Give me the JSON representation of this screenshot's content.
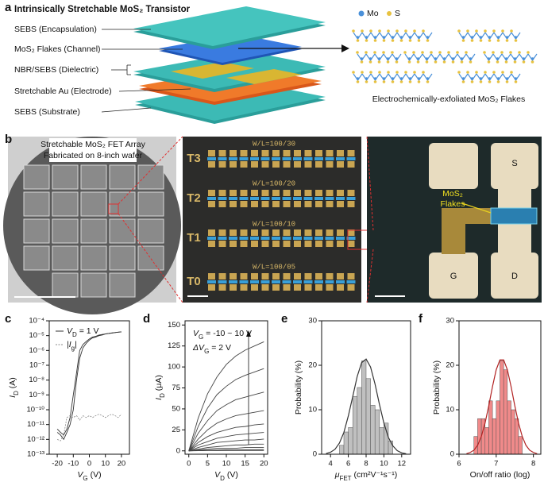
{
  "panel_a": {
    "label": "a",
    "title": "Intrinsically Stretchable MoS₂ Transistor",
    "layers": [
      "SEBS (Encapsulation)",
      "MoS₂ Flakes (Channel)",
      "NBR/SEBS (Dielectric)",
      "Stretchable Au (Electrode)",
      "SEBS (Substrate)"
    ],
    "legend": [
      "Mo",
      "S"
    ],
    "caption": "Electrochemically-exfoliated MoS₂ Flakes"
  },
  "panel_b": {
    "label": "b",
    "wafer_caption": [
      "Stretchable MoS₂ FET Array",
      "Fabricated on 8-inch wafer"
    ],
    "rows": [
      {
        "name": "T3",
        "ratio": "W/L=100/30"
      },
      {
        "name": "T2",
        "ratio": "W/L=100/20"
      },
      {
        "name": "T1",
        "ratio": "W/L=100/10"
      },
      {
        "name": "T0",
        "ratio": "W/L=100/05"
      }
    ],
    "pads": [
      "S",
      "G",
      "D"
    ],
    "flakes_label": [
      "MoS₂",
      "Flakes"
    ]
  },
  "chart_data": [
    {
      "type": "line",
      "label": "c",
      "ylog": true,
      "xlim": [
        -25,
        25
      ],
      "xticks": [
        -20,
        -10,
        0,
        10,
        20
      ],
      "ylim": [
        1e-13,
        0.0001
      ],
      "yticks": [
        {
          "value": 1e-13,
          "label": "10⁻¹³"
        },
        {
          "value": 1e-12,
          "label": "10⁻¹²"
        },
        {
          "value": 1e-11,
          "label": "10⁻¹¹"
        },
        {
          "value": 1e-10,
          "label": "10⁻¹⁰"
        },
        {
          "value": 1e-09,
          "label": "10⁻⁹"
        },
        {
          "value": 1e-08,
          "label": "10⁻⁸"
        },
        {
          "value": 1e-07,
          "label": "10⁻⁷"
        },
        {
          "value": 1e-06,
          "label": "10⁻⁶"
        },
        {
          "value": 1e-05,
          "label": "10⁻⁵"
        },
        {
          "value": 0.0001,
          "label": "10⁻⁴"
        }
      ],
      "xlabel": [
        "V",
        "G",
        " (V)"
      ],
      "ylabel": [
        "I",
        "D",
        " (A)"
      ],
      "x": [
        -20,
        -18,
        -16,
        -14,
        -12,
        -10,
        -8,
        -6,
        -4,
        -2,
        0,
        2,
        4,
        6,
        8,
        10,
        12,
        14,
        16,
        18,
        20
      ],
      "series": [
        {
          "name": [
            "V",
            "D",
            " = 1 V"
          ],
          "color": "#333333",
          "values": [
            3e-12,
            2e-12,
            1e-12,
            3e-12,
            1e-11,
            1e-10,
            1e-08,
            3e-07,
            1.5e-06,
            3e-06,
            5e-06,
            7e-06,
            8e-06,
            1e-05,
            1.1e-05,
            1.3e-05,
            1.4e-05,
            1.5e-05,
            1.6e-05,
            1.7e-05,
            1.8e-05
          ]
        },
        {
          "color": "#333333",
          "values": [
            5e-12,
            3e-12,
            2e-12,
            5e-12,
            3e-11,
            1e-09,
            3e-08,
            1e-06,
            2.5e-06,
            4e-06,
            6e-06,
            8e-06,
            9e-06,
            1.1e-05,
            1.2e-05,
            1.3e-05,
            1.4e-05,
            1.5e-05,
            1.6e-05,
            1.7e-05,
            1.8e-05
          ]
        },
        {
          "name": [
            "|I",
            "g",
            "|"
          ],
          "color": "#888888",
          "dash": true,
          "values": [
            1e-12,
            8e-13,
            2e-12,
            3e-11,
            4e-11,
            3e-11,
            4e-11,
            2e-11,
            4e-11,
            3e-11,
            4e-11,
            3e-11,
            4e-11,
            5e-11,
            4e-11,
            3e-11,
            4e-11,
            5e-11,
            4e-11,
            3e-11,
            5e-11
          ]
        }
      ]
    },
    {
      "type": "line",
      "label": "d",
      "xlim": [
        -1,
        21
      ],
      "xticks": [
        0,
        5,
        10,
        15,
        20
      ],
      "ylim": [
        -4,
        155
      ],
      "yticks": [
        0,
        25,
        50,
        75,
        100,
        125,
        150
      ],
      "xlabel": [
        "V",
        "D",
        " (V)"
      ],
      "ylabel": [
        "I",
        "D",
        " (μA)"
      ],
      "annotations": [
        [
          "V",
          "G",
          " = -10 ~ 10 V"
        ],
        [
          "ΔV",
          "G",
          " = 2 V"
        ]
      ],
      "x": [
        0,
        2.5,
        5,
        7.5,
        10,
        12.5,
        15,
        17.5,
        20
      ],
      "series": [
        {
          "color": "#444444",
          "values": [
            0,
            39,
            68,
            88,
            103,
            113,
            120,
            125,
            130
          ]
        },
        {
          "color": "#444444",
          "values": [
            0,
            29,
            51,
            67,
            77,
            85,
            90,
            94,
            98
          ]
        },
        {
          "color": "#444444",
          "values": [
            0,
            21,
            36,
            48,
            55,
            61,
            64,
            67,
            70
          ]
        },
        {
          "color": "#444444",
          "values": [
            0,
            14,
            25,
            33,
            38,
            42,
            44,
            46,
            48
          ]
        },
        {
          "color": "#444444",
          "values": [
            0,
            10,
            17,
            22,
            25,
            28,
            29,
            31,
            32
          ]
        },
        {
          "color": "#444444",
          "values": [
            0,
            7,
            11,
            15,
            17,
            19,
            20,
            21,
            22
          ]
        },
        {
          "color": "#444444",
          "values": [
            0,
            4,
            7,
            10,
            11,
            12,
            13,
            13,
            14
          ]
        },
        {
          "color": "#444444",
          "values": [
            0,
            2,
            4,
            5,
            6,
            7,
            7,
            8,
            8
          ]
        },
        {
          "color": "#444444",
          "values": [
            0,
            1,
            2,
            3,
            3,
            3,
            4,
            4,
            4
          ]
        },
        {
          "color": "#444444",
          "values": [
            0,
            0.5,
            0.8,
            1,
            1.2,
            1.3,
            1.4,
            1.4,
            1.5
          ]
        },
        {
          "color": "#444444",
          "values": [
            0,
            0.2,
            0.3,
            0.3,
            0.4,
            0.4,
            0.5,
            0.5,
            0.5
          ]
        }
      ]
    },
    {
      "type": "histogram",
      "label": "e",
      "xlim": [
        3,
        13
      ],
      "xticks": [
        4,
        6,
        8,
        10,
        12
      ],
      "ylim": [
        0,
        30
      ],
      "yticks": [
        0,
        10,
        20,
        30
      ],
      "xlabel": [
        "μ",
        "FET",
        " (cm²V⁻¹s⁻¹)"
      ],
      "ylabel": [
        "Probability (%)"
      ],
      "bins": [
        5,
        5.5,
        6,
        6.5,
        7,
        7.5,
        8,
        8.5,
        9,
        9.5,
        10,
        10.5,
        11
      ],
      "values": [
        2,
        5,
        6,
        13,
        15,
        21,
        17,
        11,
        10,
        6,
        7,
        3
      ],
      "color": "#c0c0c0",
      "fit": {
        "color": "#333333",
        "x": [
          3.5,
          4,
          4.5,
          5,
          5.5,
          6,
          6.5,
          7,
          7.5,
          8,
          8.5,
          9,
          9.5,
          10,
          10.5,
          11,
          11.5,
          12,
          12.5
        ],
        "values": [
          0.15,
          0.45,
          1.1,
          2.5,
          4.9,
          8.6,
          13,
          17.5,
          20.6,
          21.4,
          19.6,
          15.8,
          11.2,
          7,
          3.8,
          1.9,
          0.8,
          0.3,
          0.1
        ]
      }
    },
    {
      "type": "histogram",
      "label": "f",
      "xlim": [
        6,
        8.2
      ],
      "xticks": [
        6,
        7,
        8
      ],
      "ylim": [
        0,
        30
      ],
      "yticks": [
        0,
        10,
        20,
        30
      ],
      "xlabel": [
        "On/off ratio (log)"
      ],
      "ylabel": [
        "Probability (%)"
      ],
      "bins": [
        6.4,
        6.5,
        6.6,
        6.7,
        6.8,
        6.9,
        7,
        7.1,
        7.2,
        7.3,
        7.4,
        7.5,
        7.6,
        7.7
      ],
      "values": [
        4,
        8,
        8,
        6,
        12,
        8,
        12,
        21,
        19,
        12,
        10,
        8,
        4
      ],
      "color": "#f08a8a",
      "fit": {
        "color": "#b22222",
        "x": [
          6.2,
          6.3,
          6.4,
          6.5,
          6.6,
          6.7,
          6.8,
          6.9,
          7,
          7.1,
          7.2,
          7.3,
          7.4,
          7.5,
          7.6,
          7.7,
          7.8,
          7.9,
          8,
          8.1
        ],
        "values": [
          0.1,
          0.4,
          0.9,
          2,
          4,
          7,
          10.9,
          15.2,
          19,
          21.2,
          21.2,
          19,
          15.2,
          10.9,
          7,
          4,
          2,
          0.9,
          0.4,
          0.1
        ]
      }
    }
  ]
}
